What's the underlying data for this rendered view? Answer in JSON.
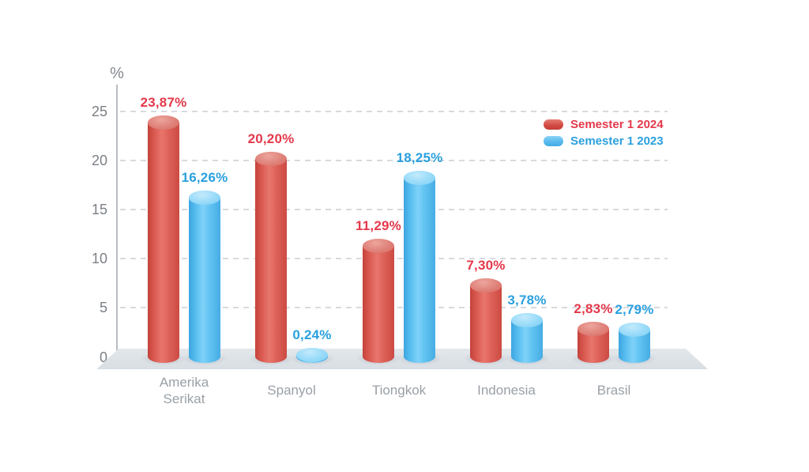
{
  "chart_data": {
    "type": "bar",
    "style": "3d-cylinder-infographic",
    "title": "",
    "y_unit": "%",
    "xlabel": "",
    "ylabel": "%",
    "categories": [
      "Amerika Serikat",
      "Spanyol",
      "Tiongkok",
      "Indonesia",
      "Brasil"
    ],
    "series": [
      {
        "name": "Semester 1 2024",
        "color": "#d7564d",
        "label_color": "#e4394b",
        "values": [
          23.87,
          20.2,
          11.29,
          7.3,
          2.83
        ],
        "value_labels": [
          "23,87%",
          "20,20%",
          "11,29%",
          "7,30%",
          "2,83%"
        ]
      },
      {
        "name": "Semester 1 2023",
        "color": "#55bcef",
        "label_color": "#2aa0de",
        "values": [
          16.26,
          0.24,
          18.25,
          3.78,
          2.79
        ],
        "value_labels": [
          "16,26%",
          "0,24%",
          "18,25%",
          "3,78%",
          "2,79%"
        ]
      }
    ],
    "y_ticks": [
      0,
      5,
      10,
      15,
      20,
      25
    ],
    "ylim": [
      0,
      25
    ],
    "grid": "dashed-horizontal",
    "legend_position": "top-right"
  }
}
